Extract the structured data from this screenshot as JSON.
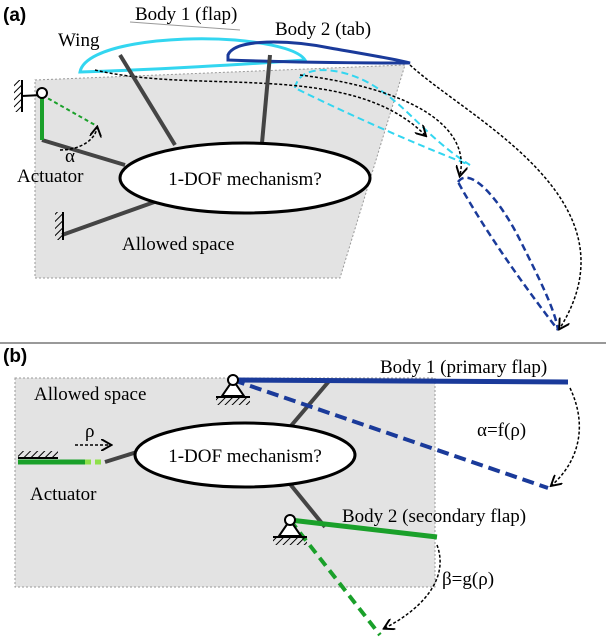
{
  "panel_a": {
    "label": "(a)",
    "body1": "Body 1 (flap)",
    "body2": "Body 2 (tab)",
    "wing": "Wing",
    "angle": "α",
    "actuator": "Actuator",
    "mechanism": "1-DOF mechanism?",
    "space": "Allowed space"
  },
  "panel_b": {
    "label": "(b)",
    "space": "Allowed space",
    "input": "ρ",
    "mechanism": "1-DOF mechanism?",
    "actuator": "Actuator",
    "body1": "Body 1 (primary flap)",
    "relation1": "α=f(ρ)",
    "body2": "Body 2 (secondary flap)",
    "relation2": "β=g(ρ)"
  }
}
